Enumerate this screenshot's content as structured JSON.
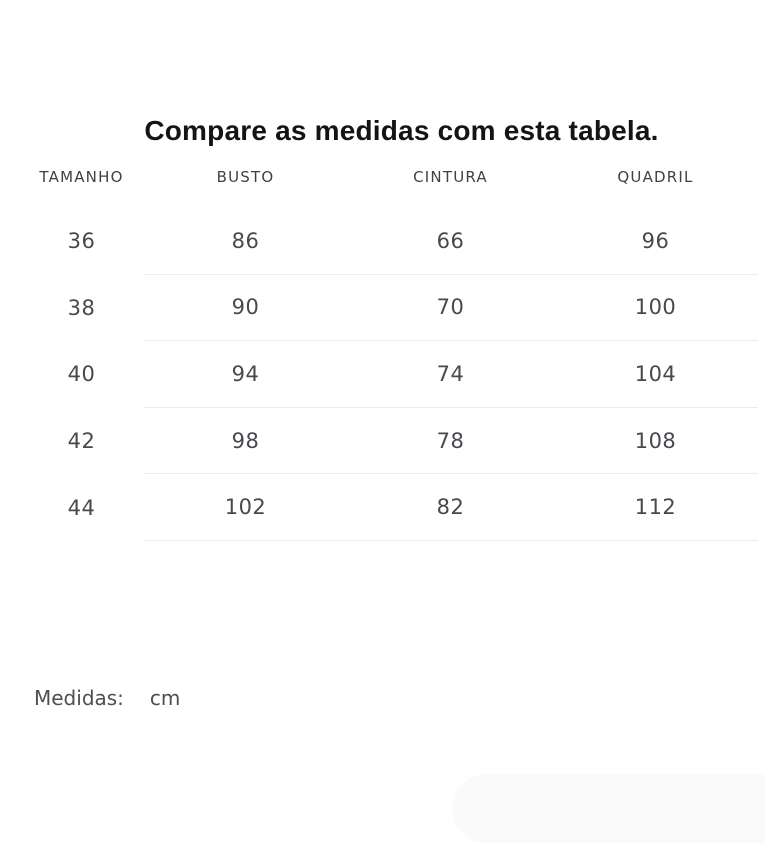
{
  "page": {
    "title": "Compare as medidas com esta tabela."
  },
  "table": {
    "columns": [
      "TAMANHO",
      "BUSTO",
      "CINTURA",
      "QUADRIL"
    ],
    "rows": [
      [
        "36",
        "86",
        "66",
        "96"
      ],
      [
        "38",
        "90",
        "70",
        "100"
      ],
      [
        "40",
        "94",
        "74",
        "104"
      ],
      [
        "42",
        "98",
        "78",
        "108"
      ],
      [
        "44",
        "102",
        "82",
        "112"
      ]
    ]
  },
  "footer": {
    "label": "Medidas:",
    "unit": "cm"
  },
  "chart_data": {
    "type": "table",
    "title": "Compare as medidas com esta tabela.",
    "columns": [
      "TAMANHO",
      "BUSTO",
      "CINTURA",
      "QUADRIL"
    ],
    "rows": [
      [
        36,
        86,
        66,
        96
      ],
      [
        38,
        90,
        70,
        100
      ],
      [
        40,
        94,
        74,
        104
      ],
      [
        42,
        98,
        78,
        108
      ],
      [
        44,
        102,
        82,
        112
      ]
    ],
    "unit": "cm"
  },
  "colors": {
    "title_text": "#141414",
    "header_text": "#3e4247",
    "cell_text": "#46494d",
    "footer_text": "#4e4e4e",
    "divider": "#ececec",
    "pill_background": "#fafafa",
    "page_background": "#ffffff"
  }
}
